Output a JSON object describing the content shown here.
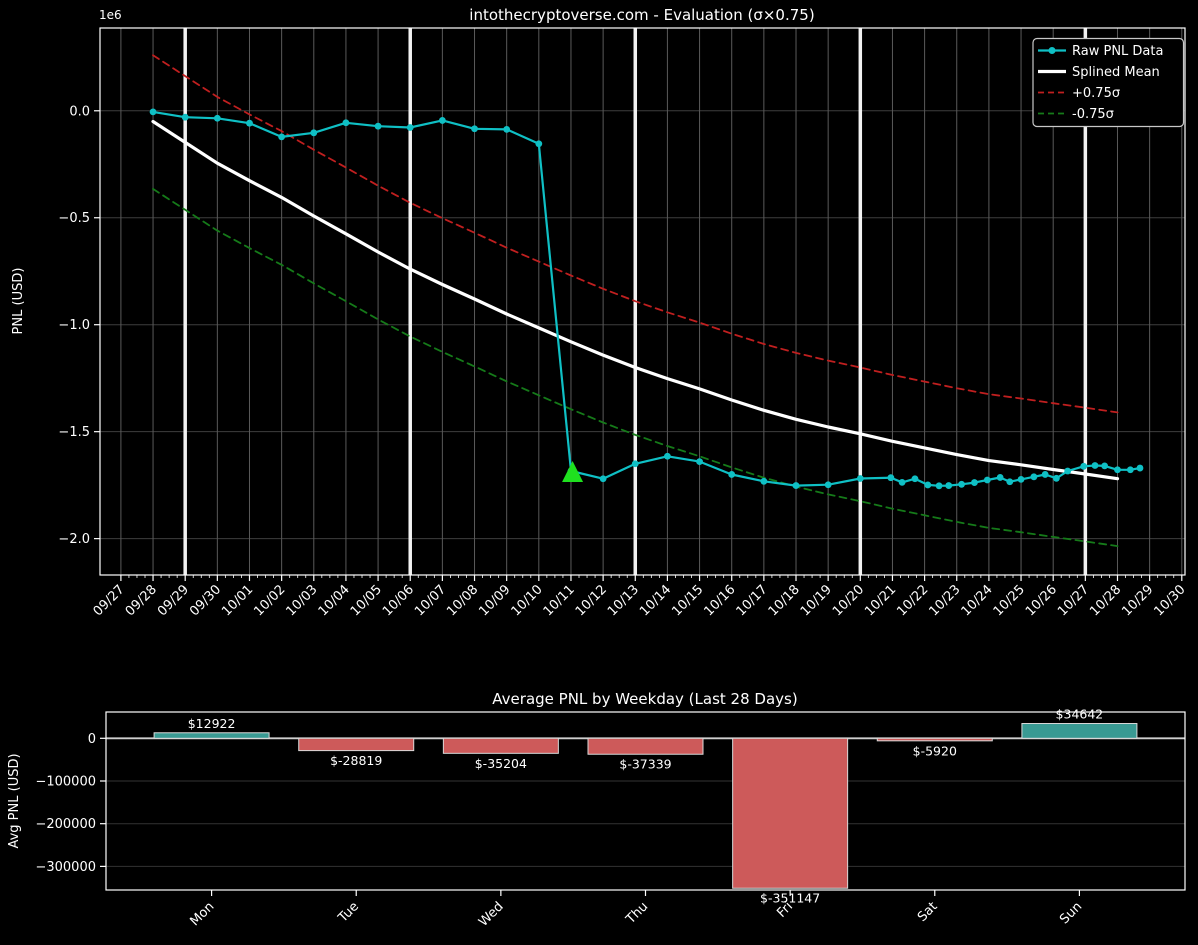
{
  "figure": {
    "background": "#000000",
    "text_color": "#ffffff",
    "grid_color_vertical": "#5a5a5a",
    "grid_color_horizontal": "#3e3e3e"
  },
  "chart_data": [
    {
      "type": "line",
      "title": "intothecryptoverse.com - Evaluation (σ×0.75)",
      "ylabel": "PNL (USD)",
      "offset_text": "1e6",
      "x_unit": "days since 09/27",
      "xlim": [
        -0.65,
        33.1
      ],
      "ylim": [
        -2170000,
        387000
      ],
      "grid": true,
      "legend_position": "upper right",
      "xticklabels": [
        "09/27",
        "09/28",
        "09/29",
        "09/30",
        "10/01",
        "10/02",
        "10/03",
        "10/04",
        "10/05",
        "10/06",
        "10/07",
        "10/08",
        "10/09",
        "10/10",
        "10/11",
        "10/12",
        "10/13",
        "10/14",
        "10/15",
        "10/16",
        "10/17",
        "10/18",
        "10/19",
        "10/20",
        "10/21",
        "10/22",
        "10/23",
        "10/24",
        "10/25",
        "10/26",
        "10/27",
        "10/28",
        "10/29",
        "10/30"
      ],
      "yticks": [
        0,
        -500000,
        -1000000,
        -1500000,
        -2000000
      ],
      "ytick_labels": [
        "0.0",
        "−0.5",
        "−1.0",
        "−1.5",
        "−2.0"
      ],
      "week_lines": {
        "days": [
          2,
          9,
          16,
          23,
          30
        ],
        "dates": [
          "09/29",
          "10/06",
          "10/13",
          "10/20",
          "10/27"
        ],
        "color": "#f2f2f2"
      },
      "annotation_marker": {
        "type": "triangle-up",
        "color": "#1fe01f",
        "x_day": 14.05,
        "value": -1693000,
        "date": "10/11"
      },
      "series": [
        {
          "name": "Raw PNL Data",
          "color": "#0fc0c5",
          "style": "solid",
          "markers": true,
          "linewidth": 2.2,
          "points": [
            [
              1,
              -5000
            ],
            [
              2,
              -30000
            ],
            [
              3,
              -35000
            ],
            [
              4,
              -58000
            ],
            [
              5,
              -122000
            ],
            [
              6,
              -103000
            ],
            [
              7,
              -56000
            ],
            [
              8,
              -72000
            ],
            [
              9,
              -78000
            ],
            [
              10,
              -45000
            ],
            [
              11,
              -84000
            ],
            [
              12,
              -87000
            ],
            [
              13,
              -154000
            ],
            [
              14,
              -1684000
            ],
            [
              15,
              -1720000
            ],
            [
              16,
              -1650000
            ],
            [
              17,
              -1615000
            ],
            [
              18,
              -1640000
            ],
            [
              19,
              -1700000
            ],
            [
              20,
              -1732000
            ],
            [
              21,
              -1752000
            ],
            [
              22,
              -1748000
            ],
            [
              23,
              -1719000
            ],
            [
              23.95,
              -1715000
            ],
            [
              24.3,
              -1737000
            ],
            [
              24.7,
              -1720000
            ],
            [
              25.1,
              -1749000
            ],
            [
              25.45,
              -1753000
            ],
            [
              25.75,
              -1752000
            ],
            [
              26.15,
              -1746000
            ],
            [
              26.55,
              -1738000
            ],
            [
              26.95,
              -1726000
            ],
            [
              27.35,
              -1714000
            ],
            [
              27.65,
              -1734000
            ],
            [
              28,
              -1723000
            ],
            [
              28.4,
              -1711000
            ],
            [
              28.75,
              -1700000
            ],
            [
              29.1,
              -1718000
            ],
            [
              29.45,
              -1684000
            ],
            [
              29.95,
              -1662000
            ],
            [
              30.3,
              -1658000
            ],
            [
              30.6,
              -1660000
            ],
            [
              31,
              -1678000
            ],
            [
              31.4,
              -1678000
            ],
            [
              31.7,
              -1670000
            ]
          ]
        },
        {
          "name": "Splined Mean",
          "color": "#ffffff",
          "style": "solid",
          "markers": false,
          "linewidth": 3.2,
          "points": [
            [
              1,
              -50000
            ],
            [
              2,
              -148000
            ],
            [
              3,
              -245000
            ],
            [
              4,
              -327000
            ],
            [
              5,
              -405000
            ],
            [
              6,
              -492000
            ],
            [
              7,
              -575000
            ],
            [
              8,
              -660000
            ],
            [
              9,
              -740000
            ],
            [
              10,
              -812000
            ],
            [
              11,
              -880000
            ],
            [
              12,
              -950000
            ],
            [
              13,
              -1015000
            ],
            [
              14,
              -1080000
            ],
            [
              15,
              -1142000
            ],
            [
              16,
              -1200000
            ],
            [
              17,
              -1252000
            ],
            [
              18,
              -1300000
            ],
            [
              19,
              -1352000
            ],
            [
              20,
              -1400000
            ],
            [
              21,
              -1442000
            ],
            [
              22,
              -1478000
            ],
            [
              23,
              -1510000
            ],
            [
              24,
              -1545000
            ],
            [
              25,
              -1576000
            ],
            [
              26,
              -1607000
            ],
            [
              27,
              -1635000
            ],
            [
              28,
              -1655000
            ],
            [
              29,
              -1677000
            ],
            [
              30,
              -1698000
            ],
            [
              31,
              -1720000
            ]
          ]
        },
        {
          "name": "+0.75σ",
          "color": "#c01f1f",
          "style": "dashed",
          "markers": false,
          "linewidth": 1.8,
          "points": [
            [
              1,
              260000
            ],
            [
              2,
              162000
            ],
            [
              3,
              65000
            ],
            [
              4,
              -17000
            ],
            [
              5,
              -95000
            ],
            [
              6,
              -182000
            ],
            [
              7,
              -265000
            ],
            [
              8,
              -350000
            ],
            [
              9,
              -430000
            ],
            [
              10,
              -502000
            ],
            [
              11,
              -570000
            ],
            [
              12,
              -640000
            ],
            [
              13,
              -705000
            ],
            [
              14,
              -770000
            ],
            [
              15,
              -832000
            ],
            [
              16,
              -890000
            ],
            [
              17,
              -942000
            ],
            [
              18,
              -990000
            ],
            [
              19,
              -1042000
            ],
            [
              20,
              -1090000
            ],
            [
              21,
              -1132000
            ],
            [
              22,
              -1168000
            ],
            [
              23,
              -1200000
            ],
            [
              24,
              -1235000
            ],
            [
              25,
              -1266000
            ],
            [
              26,
              -1297000
            ],
            [
              27,
              -1325000
            ],
            [
              28,
              -1345000
            ],
            [
              29,
              -1367000
            ],
            [
              30,
              -1388000
            ],
            [
              31,
              -1410000
            ]
          ]
        },
        {
          "name": "-0.75σ",
          "color": "#157a19",
          "style": "dashed",
          "markers": false,
          "linewidth": 1.8,
          "points": [
            [
              1,
              -365000
            ],
            [
              2,
              -463000
            ],
            [
              3,
              -560000
            ],
            [
              4,
              -642000
            ],
            [
              5,
              -720000
            ],
            [
              6,
              -807000
            ],
            [
              7,
              -890000
            ],
            [
              8,
              -975000
            ],
            [
              9,
              -1055000
            ],
            [
              10,
              -1127000
            ],
            [
              11,
              -1195000
            ],
            [
              12,
              -1265000
            ],
            [
              13,
              -1330000
            ],
            [
              14,
              -1395000
            ],
            [
              15,
              -1457000
            ],
            [
              16,
              -1515000
            ],
            [
              17,
              -1567000
            ],
            [
              18,
              -1615000
            ],
            [
              19,
              -1667000
            ],
            [
              20,
              -1715000
            ],
            [
              21,
              -1757000
            ],
            [
              22,
              -1793000
            ],
            [
              23,
              -1825000
            ],
            [
              24,
              -1860000
            ],
            [
              25,
              -1891000
            ],
            [
              26,
              -1922000
            ],
            [
              27,
              -1950000
            ],
            [
              28,
              -1970000
            ],
            [
              29,
              -1992000
            ],
            [
              30,
              -2013000
            ],
            [
              31,
              -2035000
            ]
          ]
        }
      ]
    },
    {
      "type": "bar",
      "title": "Average PNL by Weekday (Last 28 Days)",
      "ylabel": "Avg PNL (USD)",
      "categories": [
        "Mon",
        "Tue",
        "Wed",
        "Thu",
        "Fri",
        "Sat",
        "Sun"
      ],
      "values": [
        12922,
        -28819,
        -35204,
        -37339,
        -351147,
        -5920,
        34642
      ],
      "labels": [
        "$12922",
        "$-28819",
        "$-35204",
        "$-37339",
        "$-351147",
        "$-5920",
        "$34642"
      ],
      "positive_color": "#399a93",
      "negative_color": "#cd5a5a",
      "bar_edge_color": "#d9d9d9",
      "zero_line_color": "#cfcfcf",
      "yticks": [
        0,
        -100000,
        -200000,
        -300000
      ],
      "ytick_labels": [
        "0",
        "−100000",
        "−200000",
        "−300000"
      ],
      "xlim": [
        -0.73,
        6.73
      ],
      "ylim": [
        -355300,
        61600
      ],
      "grid": true,
      "legend_position": "none"
    }
  ]
}
